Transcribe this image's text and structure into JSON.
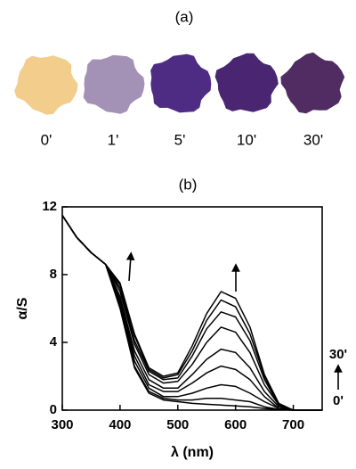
{
  "panel_a": {
    "label": "(a)",
    "samples": [
      {
        "label": "0'",
        "color": "#f3cd8c"
      },
      {
        "label": "1'",
        "color": "#a392b6"
      },
      {
        "label": "5'",
        "color": "#4f2c84"
      },
      {
        "label": "10'",
        "color": "#4a2672"
      },
      {
        "label": "30'",
        "color": "#502c62"
      }
    ]
  },
  "chart_data": {
    "type": "line",
    "panel_label": "(b)",
    "xlabel": "λ (nm)",
    "ylabel": "α/S",
    "color": "#000000",
    "xlim": [
      300,
      750
    ],
    "ylim": [
      0,
      12
    ],
    "xticks": [
      300,
      400,
      500,
      600,
      700
    ],
    "yticks": [
      0,
      4,
      8,
      12
    ],
    "annotations": [
      "30'",
      "0'"
    ],
    "x": [
      300,
      325,
      350,
      375,
      400,
      425,
      450,
      475,
      500,
      525,
      550,
      575,
      600,
      625,
      650,
      675,
      700,
      725,
      750
    ],
    "series": [
      {
        "values": [
          11.5,
          10.2,
          9.3,
          8.6,
          6.0,
          2.5,
          1.0,
          0.6,
          0.5,
          0.4,
          0.35,
          0.3,
          0.25,
          0.2,
          0.1,
          0.03,
          0,
          0,
          0
        ]
      },
      {
        "values": [
          11.5,
          10.2,
          9.3,
          8.6,
          6.1,
          2.6,
          1.1,
          0.7,
          0.6,
          0.6,
          0.7,
          0.7,
          0.6,
          0.5,
          0.2,
          0.05,
          0,
          0,
          0
        ]
      },
      {
        "values": [
          11.5,
          10.2,
          9.3,
          8.6,
          6.3,
          2.9,
          1.3,
          0.8,
          0.8,
          1.0,
          1.3,
          1.5,
          1.4,
          1.0,
          0.5,
          0.1,
          0,
          0,
          0
        ]
      },
      {
        "values": [
          11.5,
          10.2,
          9.3,
          8.6,
          6.5,
          3.2,
          1.5,
          1.1,
          1.1,
          1.6,
          2.2,
          2.6,
          2.4,
          1.8,
          0.8,
          0.1,
          0,
          0,
          0
        ]
      },
      {
        "values": [
          11.5,
          10.2,
          9.3,
          8.6,
          6.7,
          3.5,
          1.8,
          1.3,
          1.3,
          2.1,
          3.0,
          3.6,
          3.4,
          2.5,
          1.1,
          0.2,
          0,
          0,
          0
        ]
      },
      {
        "values": [
          11.5,
          10.2,
          9.3,
          8.6,
          7.0,
          3.9,
          2.1,
          1.6,
          1.7,
          2.7,
          4.0,
          4.9,
          4.6,
          3.4,
          1.5,
          0.3,
          0,
          0,
          0
        ]
      },
      {
        "values": [
          11.5,
          10.2,
          9.3,
          8.6,
          7.2,
          4.1,
          2.3,
          1.8,
          1.9,
          3.2,
          4.8,
          5.8,
          5.5,
          4.1,
          1.8,
          0.3,
          0,
          0,
          0
        ]
      },
      {
        "values": [
          11.5,
          10.2,
          9.3,
          8.6,
          7.4,
          4.4,
          2.4,
          1.9,
          2.1,
          3.5,
          5.3,
          6.5,
          6.1,
          4.5,
          2.0,
          0.3,
          0,
          0,
          0
        ]
      },
      {
        "values": [
          11.5,
          10.2,
          9.3,
          8.6,
          7.5,
          4.5,
          2.5,
          2.0,
          2.2,
          3.8,
          5.7,
          7.0,
          6.6,
          4.9,
          2.1,
          0.4,
          0,
          0,
          0
        ]
      }
    ]
  }
}
